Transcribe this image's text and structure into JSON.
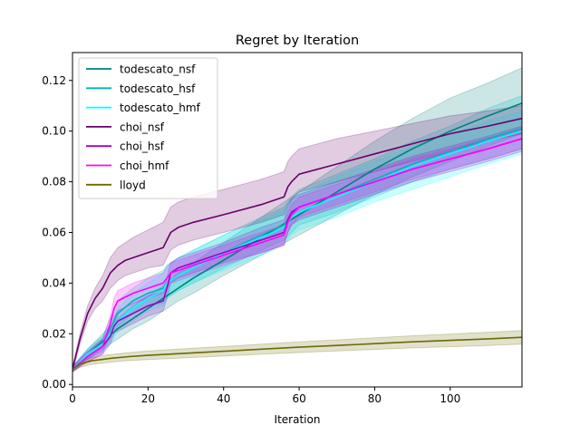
{
  "chart_data": {
    "type": "line",
    "title": "Regret by Iteration",
    "xlabel": "Iteration",
    "ylabel": "",
    "xlim": [
      0,
      119
    ],
    "ylim": [
      -0.001,
      0.131
    ],
    "xticks": [
      0,
      20,
      40,
      60,
      80,
      100
    ],
    "yticks": [
      0.0,
      0.02,
      0.04,
      0.06,
      0.08,
      0.1,
      0.12
    ],
    "ytick_labels": [
      "0.00",
      "0.02",
      "0.04",
      "0.06",
      "0.08",
      "0.10",
      "0.12"
    ],
    "grid": false,
    "legend": "top-left",
    "series": [
      {
        "name": "todescato_nsf",
        "color": "#008080",
        "x": [
          0,
          4,
          8,
          12,
          16,
          20,
          24,
          28,
          32,
          40,
          50,
          60,
          70,
          80,
          90,
          100,
          110,
          119
        ],
        "y": [
          0.006,
          0.012,
          0.017,
          0.022,
          0.026,
          0.03,
          0.034,
          0.038,
          0.042,
          0.049,
          0.058,
          0.067,
          0.076,
          0.085,
          0.093,
          0.1,
          0.106,
          0.111
        ],
        "upper": [
          0.007,
          0.014,
          0.02,
          0.026,
          0.031,
          0.035,
          0.039,
          0.044,
          0.048,
          0.056,
          0.066,
          0.076,
          0.086,
          0.096,
          0.105,
          0.113,
          0.119,
          0.125
        ],
        "lower": [
          0.005,
          0.01,
          0.014,
          0.018,
          0.022,
          0.025,
          0.029,
          0.033,
          0.036,
          0.043,
          0.051,
          0.059,
          0.067,
          0.075,
          0.082,
          0.088,
          0.094,
          0.099
        ]
      },
      {
        "name": "todescato_hsf",
        "color": "#00B5B5",
        "x": [
          0,
          4,
          8,
          10,
          12,
          16,
          20,
          24,
          25,
          28,
          32,
          40,
          50,
          56,
          58,
          60,
          70,
          80,
          90,
          100,
          110,
          119
        ],
        "y": [
          0.006,
          0.012,
          0.016,
          0.022,
          0.028,
          0.033,
          0.036,
          0.038,
          0.04,
          0.043,
          0.046,
          0.052,
          0.059,
          0.063,
          0.067,
          0.07,
          0.075,
          0.081,
          0.087,
          0.092,
          0.097,
          0.101
        ],
        "upper": [
          0.007,
          0.014,
          0.019,
          0.026,
          0.033,
          0.038,
          0.042,
          0.045,
          0.047,
          0.05,
          0.053,
          0.059,
          0.066,
          0.07,
          0.074,
          0.077,
          0.083,
          0.089,
          0.096,
          0.102,
          0.109,
          0.114
        ],
        "lower": [
          0.005,
          0.01,
          0.013,
          0.018,
          0.023,
          0.028,
          0.031,
          0.032,
          0.034,
          0.037,
          0.04,
          0.046,
          0.053,
          0.057,
          0.06,
          0.063,
          0.068,
          0.074,
          0.08,
          0.085,
          0.089,
          0.093
        ]
      },
      {
        "name": "todescato_hmf",
        "color": "#00FFFF",
        "x": [
          0,
          4,
          8,
          10,
          12,
          16,
          20,
          24,
          25,
          28,
          32,
          40,
          50,
          56,
          58,
          60,
          70,
          80,
          90,
          100,
          110,
          119
        ],
        "y": [
          0.006,
          0.012,
          0.016,
          0.02,
          0.025,
          0.03,
          0.034,
          0.037,
          0.04,
          0.043,
          0.046,
          0.052,
          0.058,
          0.062,
          0.066,
          0.068,
          0.074,
          0.08,
          0.086,
          0.091,
          0.096,
          0.1
        ],
        "upper": [
          0.007,
          0.014,
          0.019,
          0.024,
          0.03,
          0.036,
          0.04,
          0.044,
          0.047,
          0.05,
          0.053,
          0.059,
          0.065,
          0.069,
          0.073,
          0.075,
          0.082,
          0.088,
          0.094,
          0.099,
          0.104,
          0.108
        ],
        "lower": [
          0.005,
          0.01,
          0.013,
          0.016,
          0.021,
          0.025,
          0.029,
          0.031,
          0.034,
          0.037,
          0.04,
          0.045,
          0.051,
          0.055,
          0.059,
          0.061,
          0.066,
          0.072,
          0.077,
          0.082,
          0.087,
          0.091
        ]
      },
      {
        "name": "choi_nsf",
        "color": "#6A006A",
        "x": [
          0,
          2,
          4,
          6,
          8,
          10,
          12,
          14,
          16,
          20,
          24,
          25,
          26,
          28,
          32,
          40,
          50,
          56,
          57,
          58,
          60,
          70,
          80,
          90,
          100,
          110,
          119
        ],
        "y": [
          0.006,
          0.018,
          0.028,
          0.034,
          0.038,
          0.044,
          0.047,
          0.049,
          0.05,
          0.052,
          0.054,
          0.057,
          0.06,
          0.062,
          0.064,
          0.067,
          0.071,
          0.074,
          0.078,
          0.08,
          0.083,
          0.087,
          0.091,
          0.095,
          0.099,
          0.102,
          0.105
        ],
        "upper": [
          0.007,
          0.02,
          0.031,
          0.038,
          0.043,
          0.05,
          0.054,
          0.056,
          0.058,
          0.061,
          0.064,
          0.067,
          0.07,
          0.072,
          0.074,
          0.077,
          0.081,
          0.084,
          0.088,
          0.09,
          0.093,
          0.097,
          0.1,
          0.103,
          0.106,
          0.108,
          0.11
        ],
        "lower": [
          0.005,
          0.016,
          0.025,
          0.03,
          0.033,
          0.038,
          0.041,
          0.043,
          0.044,
          0.046,
          0.047,
          0.05,
          0.053,
          0.055,
          0.057,
          0.06,
          0.064,
          0.067,
          0.071,
          0.073,
          0.076,
          0.08,
          0.084,
          0.088,
          0.092,
          0.096,
          0.099
        ]
      },
      {
        "name": "choi_hsf",
        "color": "#A000C8",
        "x": [
          0,
          4,
          8,
          10,
          11,
          12,
          16,
          20,
          24,
          25,
          26,
          28,
          32,
          40,
          50,
          56,
          57,
          58,
          60,
          70,
          80,
          90,
          100,
          110,
          119
        ],
        "y": [
          0.006,
          0.011,
          0.015,
          0.019,
          0.023,
          0.025,
          0.028,
          0.031,
          0.033,
          0.038,
          0.044,
          0.046,
          0.048,
          0.052,
          0.057,
          0.06,
          0.065,
          0.068,
          0.07,
          0.075,
          0.08,
          0.085,
          0.089,
          0.093,
          0.097
        ],
        "upper": [
          0.007,
          0.013,
          0.018,
          0.022,
          0.026,
          0.029,
          0.032,
          0.035,
          0.037,
          0.042,
          0.048,
          0.05,
          0.052,
          0.056,
          0.062,
          0.065,
          0.07,
          0.073,
          0.075,
          0.08,
          0.085,
          0.09,
          0.094,
          0.098,
          0.102
        ],
        "lower": [
          0.005,
          0.009,
          0.012,
          0.016,
          0.02,
          0.021,
          0.024,
          0.027,
          0.029,
          0.034,
          0.04,
          0.042,
          0.044,
          0.048,
          0.052,
          0.055,
          0.06,
          0.063,
          0.065,
          0.07,
          0.075,
          0.08,
          0.084,
          0.088,
          0.092
        ]
      },
      {
        "name": "choi_hmf",
        "color": "#FF00FF",
        "x": [
          0,
          4,
          8,
          10,
          11,
          12,
          16,
          20,
          24,
          25,
          26,
          28,
          32,
          40,
          50,
          56,
          57,
          58,
          60,
          70,
          80,
          90,
          100,
          110,
          119
        ],
        "y": [
          0.006,
          0.011,
          0.015,
          0.024,
          0.03,
          0.033,
          0.036,
          0.038,
          0.04,
          0.042,
          0.044,
          0.045,
          0.047,
          0.051,
          0.056,
          0.059,
          0.064,
          0.067,
          0.07,
          0.075,
          0.08,
          0.085,
          0.089,
          0.093,
          0.097
        ],
        "upper": [
          0.007,
          0.013,
          0.018,
          0.027,
          0.034,
          0.037,
          0.04,
          0.042,
          0.044,
          0.046,
          0.048,
          0.049,
          0.051,
          0.055,
          0.06,
          0.063,
          0.068,
          0.071,
          0.074,
          0.079,
          0.084,
          0.089,
          0.093,
          0.097,
          0.101
        ],
        "lower": [
          0.005,
          0.009,
          0.012,
          0.021,
          0.026,
          0.029,
          0.032,
          0.034,
          0.036,
          0.038,
          0.04,
          0.041,
          0.043,
          0.047,
          0.052,
          0.055,
          0.06,
          0.063,
          0.066,
          0.071,
          0.076,
          0.081,
          0.085,
          0.089,
          0.093
        ]
      },
      {
        "name": "lloyd",
        "color": "#6B6B00",
        "x": [
          0,
          2,
          5,
          10,
          15,
          20,
          30,
          40,
          50,
          60,
          70,
          80,
          90,
          100,
          110,
          119
        ],
        "y": [
          0.006,
          0.008,
          0.0093,
          0.0103,
          0.011,
          0.0115,
          0.0123,
          0.0131,
          0.0139,
          0.0147,
          0.0154,
          0.0161,
          0.0168,
          0.0174,
          0.018,
          0.0186
        ],
        "upper": [
          0.007,
          0.0092,
          0.0107,
          0.0118,
          0.0126,
          0.0132,
          0.0141,
          0.015,
          0.0159,
          0.0168,
          0.0176,
          0.0184,
          0.0192,
          0.0199,
          0.0206,
          0.0213
        ],
        "lower": [
          0.005,
          0.0068,
          0.0079,
          0.0088,
          0.0094,
          0.0098,
          0.0105,
          0.0112,
          0.0119,
          0.0126,
          0.0132,
          0.0138,
          0.0144,
          0.0149,
          0.0154,
          0.0159
        ]
      }
    ]
  }
}
